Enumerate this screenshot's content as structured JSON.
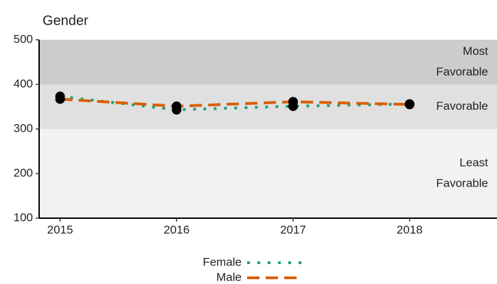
{
  "chart_data": {
    "type": "line",
    "title": "Gender",
    "x": [
      2015,
      2016,
      2017,
      2018
    ],
    "series": [
      {
        "name": "Female",
        "color": "#1b9e77",
        "dash": "dotted",
        "values": [
          373,
          343,
          351,
          356
        ]
      },
      {
        "name": "Male",
        "color": "#d95f02",
        "dash": "dashed",
        "values": [
          367,
          351,
          361,
          355
        ]
      }
    ],
    "bands": [
      {
        "from": 100,
        "to": 300,
        "color": "#f2f2f2",
        "label": [
          "Least",
          "Favorable"
        ]
      },
      {
        "from": 300,
        "to": 400,
        "color": "#e0e0e0",
        "label": [
          "Favorable"
        ]
      },
      {
        "from": 400,
        "to": 500,
        "color": "#cccccc",
        "label": [
          "Most",
          "Favorable"
        ]
      }
    ],
    "point_color": "#000000",
    "xlim": [
      2014.82,
      2018.75
    ],
    "xticks": [
      2015,
      2016,
      2017,
      2018
    ],
    "ylim": [
      100,
      500
    ],
    "yticks": [
      100,
      200,
      300,
      400,
      500
    ],
    "legend": "bottom"
  }
}
